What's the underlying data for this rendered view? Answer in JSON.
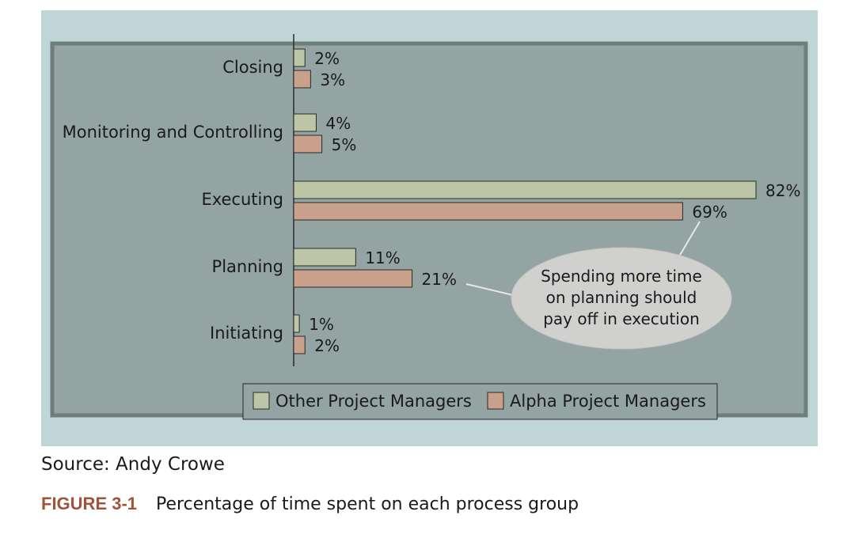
{
  "chart_data": {
    "type": "bar",
    "orientation": "horizontal",
    "categories": [
      "Closing",
      "Monitoring and Controlling",
      "Executing",
      "Planning",
      "Initiating"
    ],
    "series": [
      {
        "name": "Other Project Managers",
        "values": [
          2,
          4,
          82,
          11,
          1
        ],
        "labels": [
          "2%",
          "4%",
          "82%",
          "11%",
          "1%"
        ],
        "color": "#bcc6a6"
      },
      {
        "name": "Alpha Project Managers",
        "values": [
          3,
          5,
          69,
          21,
          2
        ],
        "labels": [
          "3%",
          "5%",
          "69%",
          "21%",
          "2%"
        ],
        "color": "#c9a08c"
      }
    ],
    "xlim": [
      0,
      82
    ],
    "grid": false,
    "legend_position": "bottom",
    "callout": {
      "lines": [
        "Spending more time",
        "on planning should",
        "pay off in execution"
      ]
    }
  },
  "colors": {
    "panel_background": "#c0d5d6",
    "plot_background": "#93a4a2",
    "plot_border": "#6f7d7b",
    "callout_fill": "#d0d0cf",
    "figure_label": "#a0533a"
  },
  "source": "Source: Andy Crowe",
  "caption": {
    "label": "FIGURE 3-1",
    "text": "Percentage of time spent on each process group"
  }
}
